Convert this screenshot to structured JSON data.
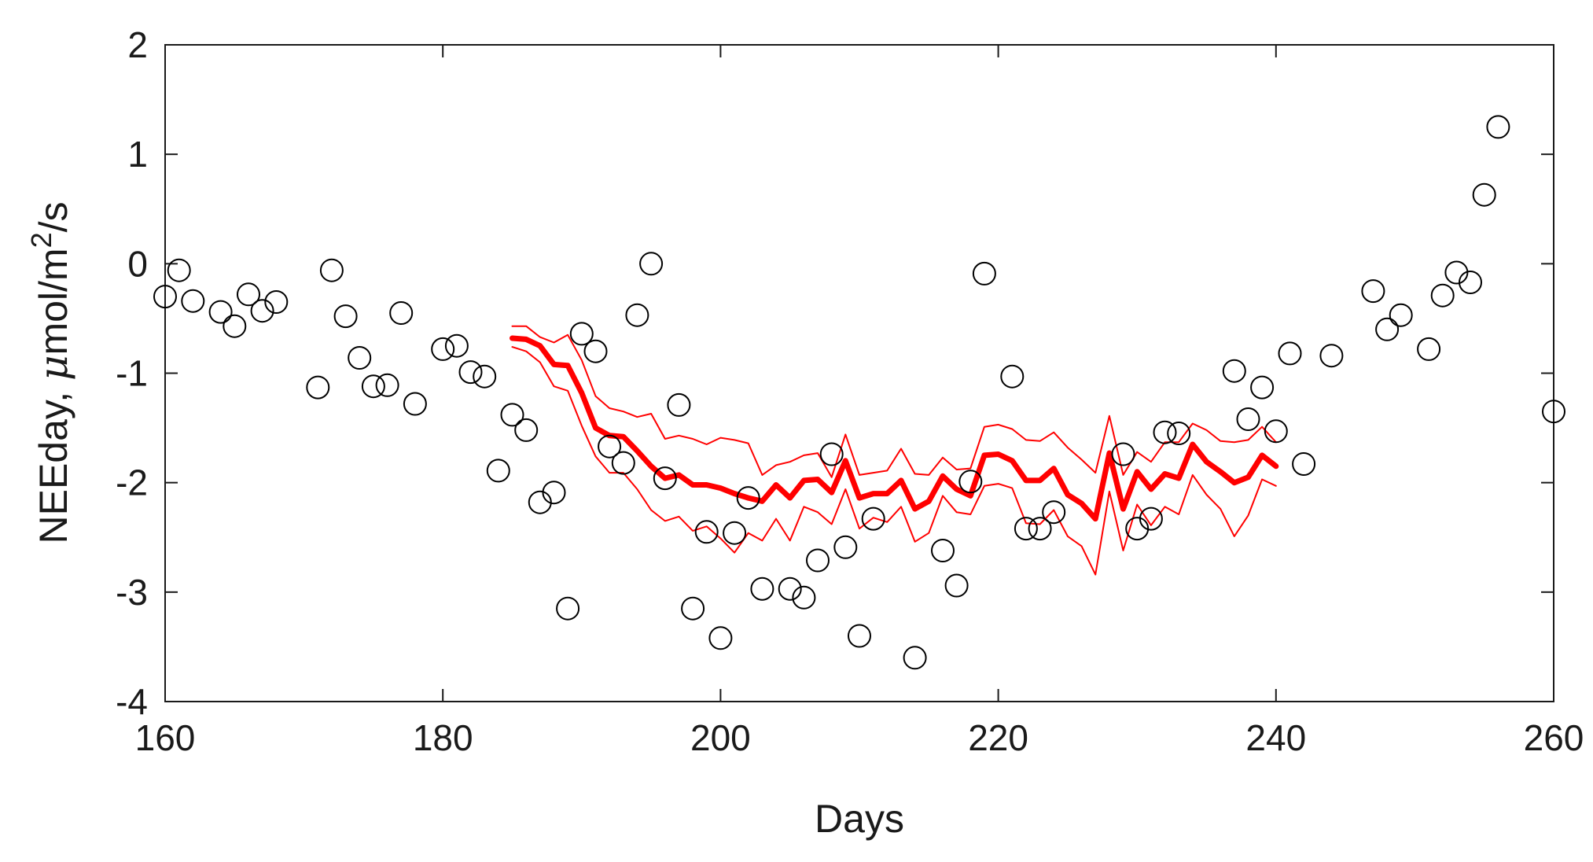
{
  "chart_data": {
    "type": "scatter",
    "xlabel": "Days",
    "ylabel": {
      "prefix": "NEEday, ",
      "mu": "μ",
      "unit": "mol/m",
      "sup": "2",
      "suffix": "/s"
    },
    "xlim": [
      160,
      260
    ],
    "ylim": [
      -4,
      2
    ],
    "xticks": [
      "160",
      "180",
      "200",
      "220",
      "240",
      "260"
    ],
    "yticks": [
      "-4",
      "-3",
      "-2",
      "-1",
      "0",
      "1",
      "2"
    ],
    "grid": false,
    "colors": {
      "points": "#000000",
      "lines": "#ff0000",
      "axes": "#1a1a1a"
    },
    "series": [
      {
        "marker": "open-circle",
        "points": [
          [
            160,
            -0.3
          ],
          [
            161,
            -0.06
          ],
          [
            162,
            -0.34
          ],
          [
            164,
            -0.44
          ],
          [
            165,
            -0.57
          ],
          [
            166,
            -0.28
          ],
          [
            167,
            -0.43
          ],
          [
            168,
            -0.35
          ],
          [
            171,
            -1.13
          ],
          [
            172,
            -0.06
          ],
          [
            173,
            -0.48
          ],
          [
            174,
            -0.86
          ],
          [
            175,
            -1.12
          ],
          [
            176,
            -1.11
          ],
          [
            177,
            -0.45
          ],
          [
            178,
            -1.28
          ],
          [
            180,
            -0.78
          ],
          [
            181,
            -0.75
          ],
          [
            182,
            -0.99
          ],
          [
            183,
            -1.03
          ],
          [
            184,
            -1.89
          ],
          [
            185,
            -1.38
          ],
          [
            186,
            -1.52
          ],
          [
            187,
            -2.18
          ],
          [
            188,
            -2.09
          ],
          [
            189,
            -3.15
          ],
          [
            190,
            -0.64
          ],
          [
            191,
            -0.8
          ],
          [
            192,
            -1.67
          ],
          [
            193,
            -1.82
          ],
          [
            194,
            -0.47
          ],
          [
            195,
            0.0
          ],
          [
            196,
            -1.96
          ],
          [
            197,
            -1.29
          ],
          [
            198,
            -3.15
          ],
          [
            199,
            -2.45
          ],
          [
            200,
            -3.42
          ],
          [
            201,
            -2.46
          ],
          [
            202,
            -2.14
          ],
          [
            203,
            -2.97
          ],
          [
            205,
            -2.97
          ],
          [
            206,
            -3.05
          ],
          [
            207,
            -2.71
          ],
          [
            208,
            -1.74
          ],
          [
            209,
            -2.59
          ],
          [
            210,
            -3.4
          ],
          [
            211,
            -2.33
          ],
          [
            214,
            -3.6
          ],
          [
            216,
            -2.62
          ],
          [
            217,
            -2.94
          ],
          [
            218,
            -1.99
          ],
          [
            219,
            -0.09
          ],
          [
            221,
            -1.03
          ],
          [
            222,
            -2.42
          ],
          [
            223,
            -2.42
          ],
          [
            224,
            -2.27
          ],
          [
            229,
            -1.74
          ],
          [
            230,
            -2.42
          ],
          [
            231,
            -2.33
          ],
          [
            232,
            -1.54
          ],
          [
            233,
            -1.55
          ],
          [
            237,
            -0.98
          ],
          [
            238,
            -1.42
          ],
          [
            239,
            -1.13
          ],
          [
            240,
            -1.53
          ],
          [
            241,
            -0.82
          ],
          [
            242,
            -1.83
          ],
          [
            244,
            -0.84
          ],
          [
            247,
            -0.25
          ],
          [
            248,
            -0.6
          ],
          [
            249,
            -0.47
          ],
          [
            251,
            -0.78
          ],
          [
            252,
            -0.29
          ],
          [
            253,
            -0.08
          ],
          [
            254,
            -0.17
          ],
          [
            255,
            0.63
          ],
          [
            256,
            1.25
          ],
          [
            260,
            -1.35
          ]
        ]
      },
      {
        "line": "thick",
        "x": [
          185,
          186,
          187,
          188,
          189,
          190,
          191,
          192,
          193,
          194,
          195,
          196,
          197,
          198,
          199,
          200,
          201,
          202,
          203,
          204,
          205,
          206,
          207,
          208,
          209,
          210,
          211,
          212,
          213,
          214,
          215,
          216,
          217,
          218,
          219,
          220,
          221,
          222,
          223,
          224,
          225,
          226,
          227,
          228,
          229,
          230,
          231,
          232,
          233,
          234,
          235,
          236,
          237,
          238,
          239,
          240
        ],
        "y": [
          -0.68,
          -0.69,
          -0.75,
          -0.92,
          -0.93,
          -1.18,
          -1.5,
          -1.57,
          -1.58,
          -1.71,
          -1.85,
          -1.96,
          -1.93,
          -2.02,
          -2.02,
          -2.05,
          -2.1,
          -2.14,
          -2.17,
          -2.02,
          -2.14,
          -1.98,
          -1.97,
          -2.09,
          -1.8,
          -2.14,
          -2.1,
          -2.1,
          -1.98,
          -2.24,
          -2.17,
          -1.94,
          -2.06,
          -2.12,
          -1.75,
          -1.74,
          -1.8,
          -1.98,
          -1.98,
          -1.87,
          -2.11,
          -2.19,
          -2.33,
          -1.73,
          -2.24,
          -1.9,
          -2.06,
          -1.92,
          -1.96,
          -1.65,
          -1.81,
          -1.9,
          -2.0,
          -1.95,
          -1.75,
          -1.85
        ]
      },
      {
        "line": "thin",
        "x": [
          185,
          186,
          187,
          188,
          189,
          190,
          191,
          192,
          193,
          194,
          195,
          196,
          197,
          198,
          199,
          200,
          201,
          202,
          203,
          204,
          205,
          206,
          207,
          208,
          209,
          210,
          211,
          212,
          213,
          214,
          215,
          216,
          217,
          218,
          219,
          220,
          221,
          222,
          223,
          224,
          225,
          226,
          227,
          228,
          229,
          230,
          231,
          232,
          233,
          234,
          235,
          236,
          237,
          238,
          239,
          240
        ],
        "y": [
          -0.57,
          -0.57,
          -0.67,
          -0.72,
          -0.65,
          -0.88,
          -1.21,
          -1.32,
          -1.35,
          -1.4,
          -1.37,
          -1.6,
          -1.57,
          -1.6,
          -1.65,
          -1.59,
          -1.61,
          -1.64,
          -1.93,
          -1.84,
          -1.81,
          -1.75,
          -1.73,
          -1.95,
          -1.56,
          -1.93,
          -1.91,
          -1.89,
          -1.69,
          -1.92,
          -1.93,
          -1.77,
          -1.88,
          -1.87,
          -1.49,
          -1.47,
          -1.51,
          -1.61,
          -1.62,
          -1.54,
          -1.68,
          -1.79,
          -1.91,
          -1.39,
          -1.93,
          -1.72,
          -1.81,
          -1.63,
          -1.63,
          -1.46,
          -1.52,
          -1.62,
          -1.63,
          -1.61,
          -1.49,
          -1.63
        ]
      },
      {
        "line": "thin",
        "x": [
          185,
          186,
          187,
          188,
          189,
          190,
          191,
          192,
          193,
          194,
          195,
          196,
          197,
          198,
          199,
          200,
          201,
          202,
          203,
          204,
          205,
          206,
          207,
          208,
          209,
          210,
          211,
          212,
          213,
          214,
          215,
          216,
          217,
          218,
          219,
          220,
          221,
          222,
          223,
          224,
          225,
          226,
          227,
          228,
          229,
          230,
          231,
          232,
          233,
          234,
          235,
          236,
          237,
          238,
          239,
          240
        ],
        "y": [
          -0.76,
          -0.8,
          -0.9,
          -1.12,
          -1.16,
          -1.48,
          -1.76,
          -1.91,
          -1.91,
          -2.06,
          -2.25,
          -2.35,
          -2.31,
          -2.44,
          -2.4,
          -2.51,
          -2.64,
          -2.46,
          -2.53,
          -2.33,
          -2.53,
          -2.22,
          -2.27,
          -2.38,
          -2.06,
          -2.42,
          -2.32,
          -2.36,
          -2.22,
          -2.54,
          -2.46,
          -2.12,
          -2.27,
          -2.29,
          -2.03,
          -2.01,
          -2.05,
          -2.37,
          -2.38,
          -2.25,
          -2.49,
          -2.58,
          -2.84,
          -2.08,
          -2.62,
          -2.2,
          -2.39,
          -2.22,
          -2.29,
          -1.93,
          -2.11,
          -2.24,
          -2.49,
          -2.3,
          -1.97,
          -2.03
        ]
      }
    ]
  }
}
